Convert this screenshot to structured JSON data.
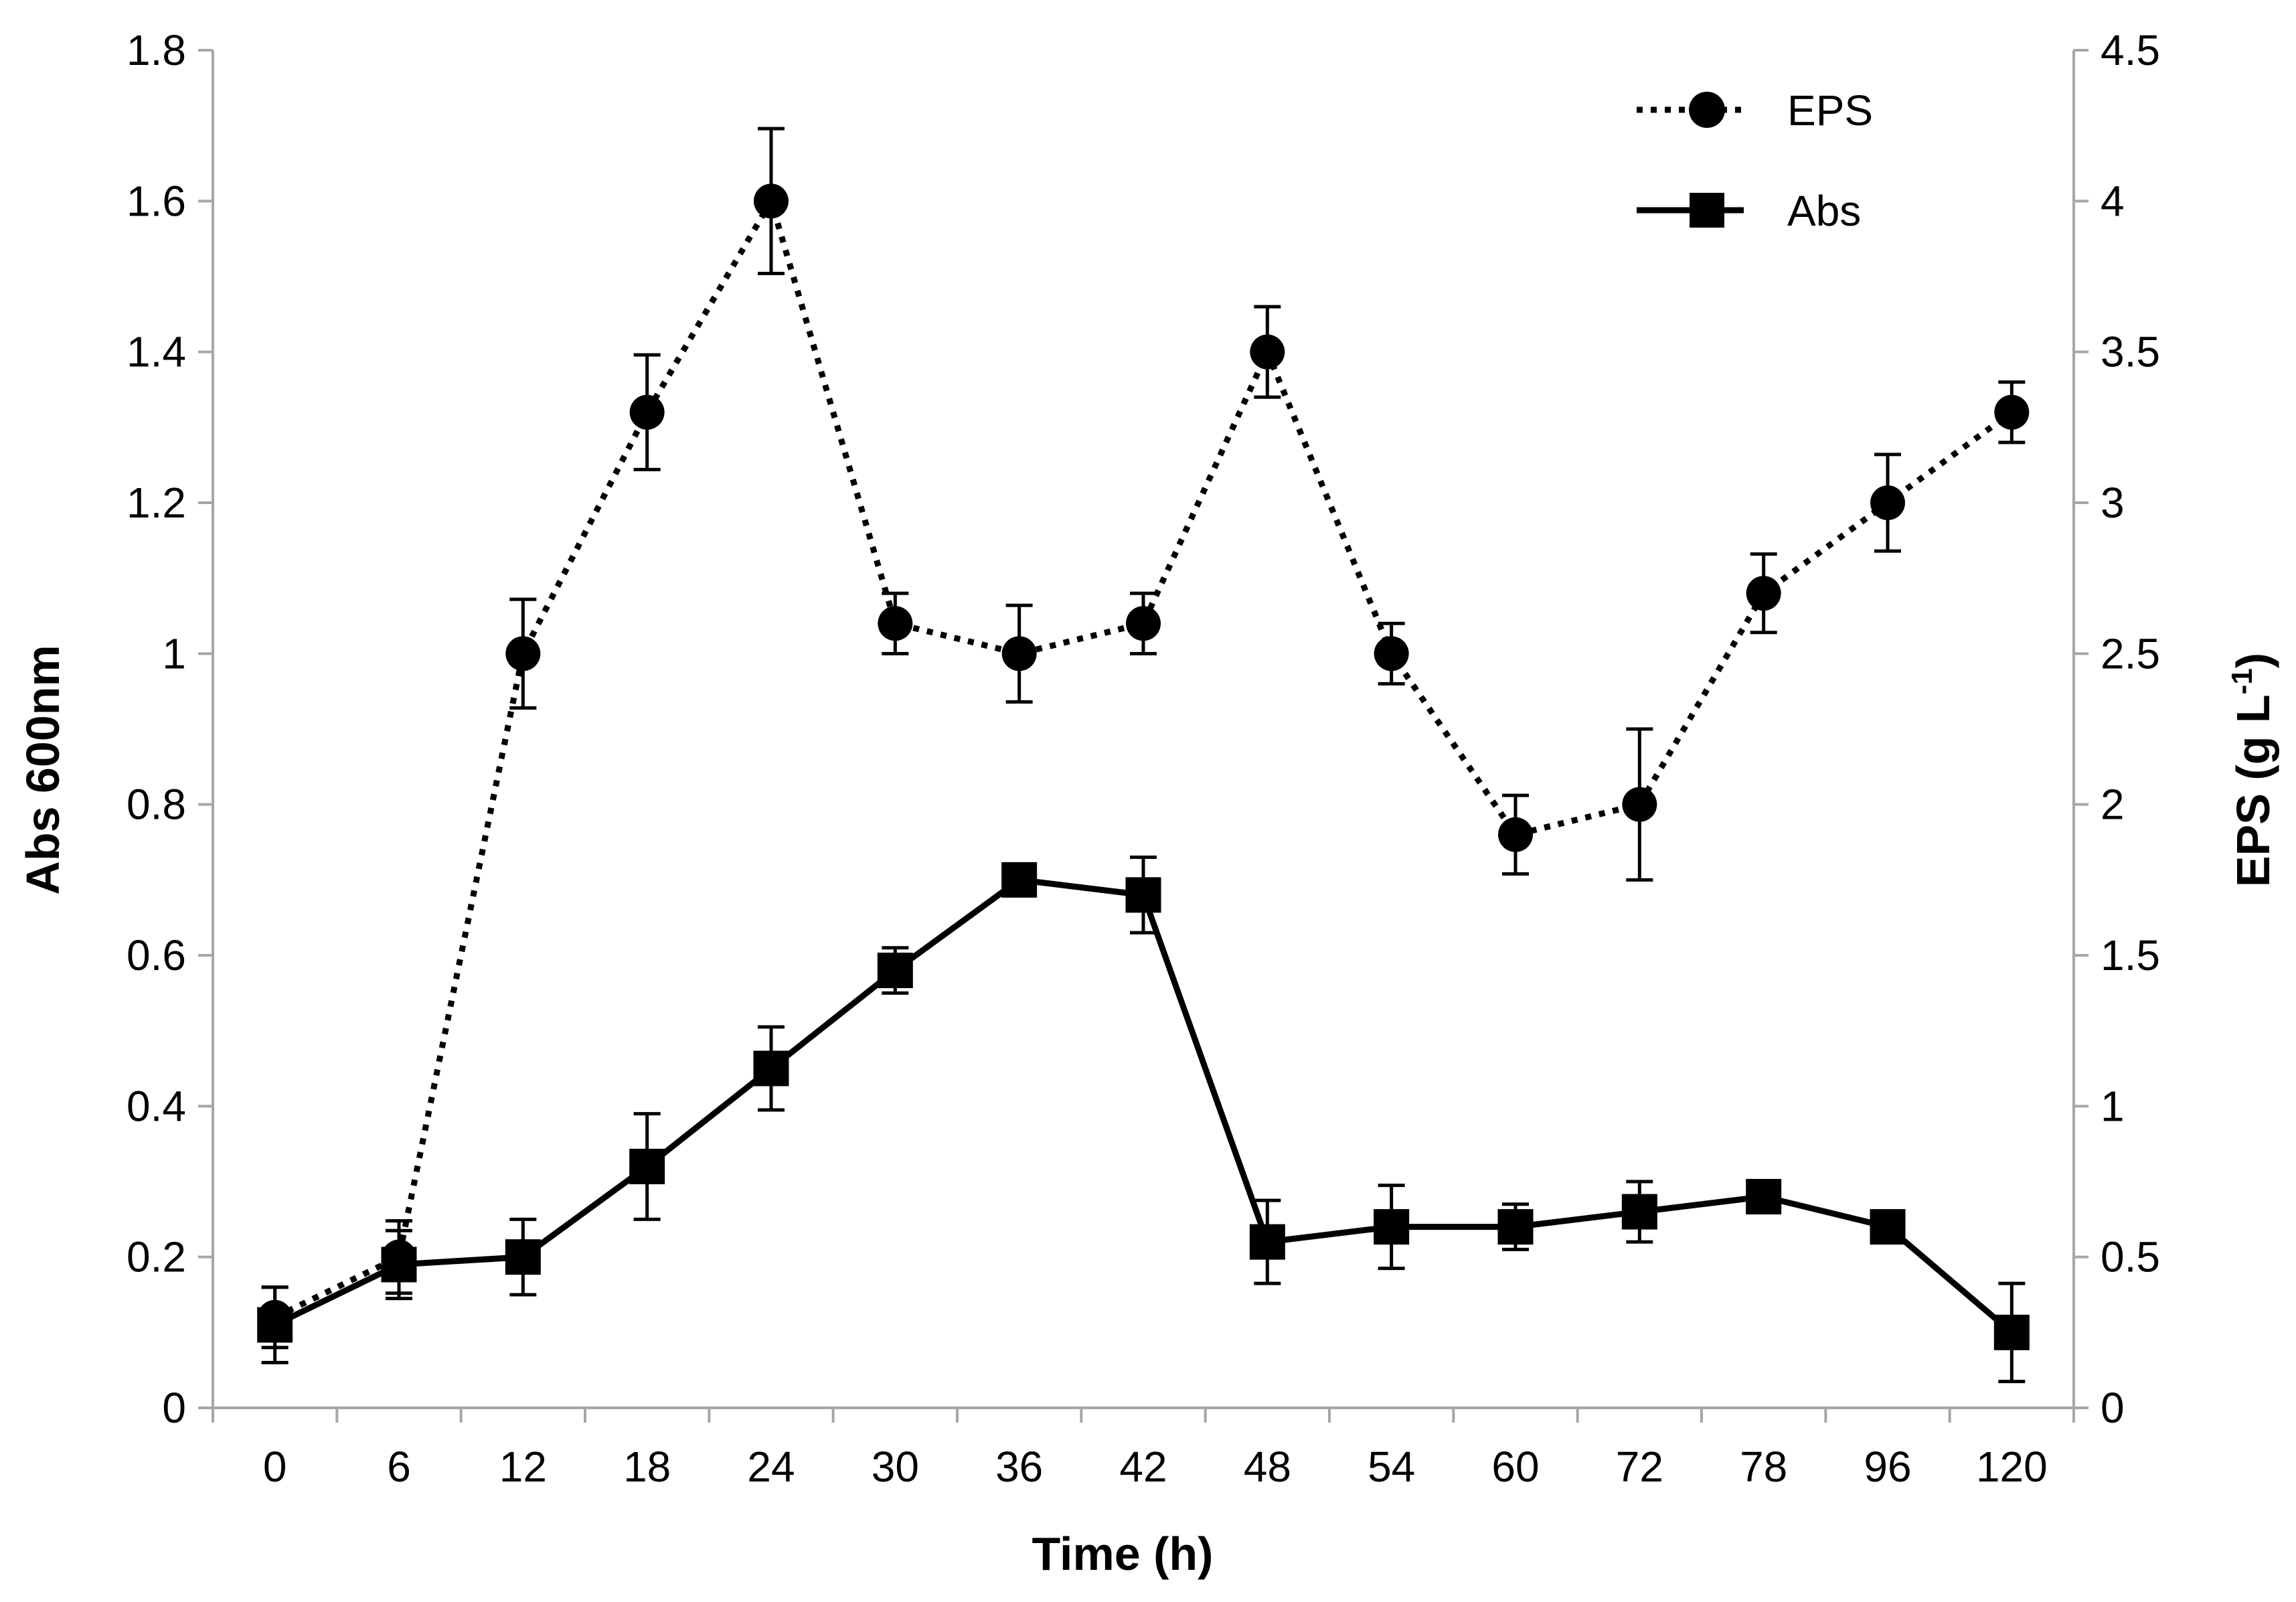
{
  "chart_data": {
    "type": "line",
    "xlabel": "Time (h)",
    "ylabel": "Abs 600nm",
    "y2label_main": "EPS (g L",
    "y2label_sup": "-1",
    "y2label_close": ")",
    "categories": [
      "0",
      "6",
      "12",
      "18",
      "24",
      "30",
      "36",
      "42",
      "48",
      "54",
      "60",
      "72",
      "78",
      "96",
      "120"
    ],
    "ylim": [
      0,
      1.8
    ],
    "yticks": [
      "0",
      "0.2",
      "0.4",
      "0.6",
      "0.8",
      "1",
      "1.2",
      "1.4",
      "1.6",
      "1.8"
    ],
    "y2lim": [
      0,
      4.5
    ],
    "y2ticks": [
      "0",
      "0.5",
      "1",
      "1.5",
      "2",
      "2.5",
      "3",
      "3.5",
      "4",
      "4.5"
    ],
    "legend_position": "top-right",
    "series": [
      {
        "name": "EPS",
        "axis": "right",
        "line_style": "dotted",
        "marker": "circle",
        "color": "#000000",
        "values": [
          0.3,
          0.5,
          2.5,
          3.3,
          4.0,
          2.6,
          2.5,
          2.6,
          3.5,
          2.5,
          1.9,
          2.0,
          2.7,
          3.0,
          3.3
        ],
        "errors": [
          0.1,
          0.12,
          0.18,
          0.19,
          0.24,
          0.1,
          0.16,
          0.1,
          0.15,
          0.1,
          0.13,
          0.25,
          0.13,
          0.16,
          0.1
        ]
      },
      {
        "name": "Abs",
        "axis": "left",
        "line_style": "solid",
        "marker": "square",
        "color": "#000000",
        "values": [
          0.11,
          0.19,
          0.2,
          0.32,
          0.45,
          0.58,
          0.7,
          0.68,
          0.22,
          0.24,
          0.24,
          0.26,
          0.28,
          0.24,
          0.1
        ],
        "errors": [
          0.05,
          0.045,
          0.05,
          0.07,
          0.055,
          0.03,
          0.01,
          0.05,
          0.055,
          0.055,
          0.03,
          0.04,
          0.01,
          0.01,
          0.065
        ]
      }
    ]
  }
}
